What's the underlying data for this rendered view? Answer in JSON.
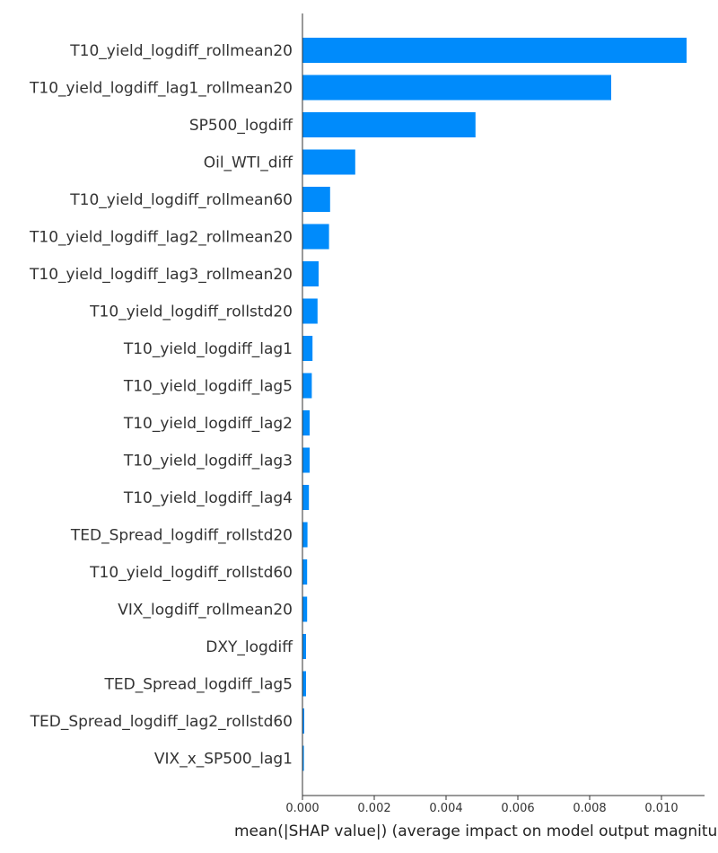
{
  "chart_data": {
    "type": "bar",
    "orientation": "horizontal",
    "categories": [
      "T10_yield_logdiff_rollmean20",
      "T10_yield_logdiff_lag1_rollmean20",
      "SP500_logdiff",
      "Oil_WTI_diff",
      "T10_yield_logdiff_rollmean60",
      "T10_yield_logdiff_lag2_rollmean20",
      "T10_yield_logdiff_lag3_rollmean20",
      "T10_yield_logdiff_rollstd20",
      "T10_yield_logdiff_lag1",
      "T10_yield_logdiff_lag5",
      "T10_yield_logdiff_lag2",
      "T10_yield_logdiff_lag3",
      "T10_yield_logdiff_lag4",
      "TED_Spread_logdiff_rollstd20",
      "T10_yield_logdiff_rollstd60",
      "VIX_logdiff_rollmean20",
      "DXY_logdiff",
      "TED_Spread_logdiff_lag5",
      "TED_Spread_logdiff_lag2_rollstd60",
      "VIX_x_SP500_lag1"
    ],
    "values": [
      0.0107,
      0.0086,
      0.00482,
      0.00147,
      0.00077,
      0.00074,
      0.00045,
      0.00042,
      0.00028,
      0.00026,
      0.0002,
      0.0002,
      0.00018,
      0.00014,
      0.00013,
      0.00013,
      0.0001,
      0.0001,
      5e-05,
      4e-05
    ],
    "xlabel": "mean(|SHAP value|) (average impact on model output magnitude)",
    "xlim": [
      0,
      0.0112
    ],
    "xticks": [
      0.0,
      0.002,
      0.004,
      0.006,
      0.008,
      0.01
    ],
    "xtick_labels": [
      "0.000",
      "0.002",
      "0.004",
      "0.006",
      "0.008",
      "0.010"
    ],
    "colors": {
      "bar": "#008bfb",
      "axis": "#333333",
      "text": "#333333"
    },
    "grid": false,
    "legend": "none"
  }
}
